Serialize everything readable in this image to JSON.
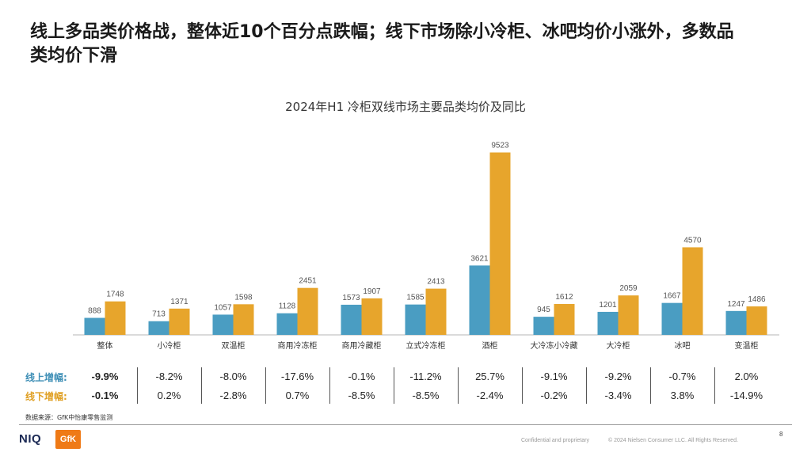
{
  "headline": "线上多品类价格战，整体近10个百分点跌幅；线下市场除小冷柜、冰吧均价小涨外，多数品类均价下滑",
  "colors": {
    "online": "#4a9dc2",
    "offline": "#e7a52c"
  },
  "chart_data": {
    "type": "bar",
    "title": "2024年H1 冷柜双线市场主要品类均价及同比",
    "categories": [
      "整体",
      "小冷柜",
      "双温柜",
      "商用冷冻柜",
      "商用冷藏柜",
      "立式冷冻柜",
      "酒柜",
      "大冷冻小冷藏",
      "大冷柜",
      "冰吧",
      "变温柜"
    ],
    "series": [
      {
        "values": [
          888,
          713,
          1057,
          1128,
          1573,
          1585,
          3621,
          945,
          1201,
          1667,
          1247
        ]
      },
      {
        "values": [
          1748,
          1371,
          1598,
          2451,
          1907,
          2413,
          9523,
          1612,
          2059,
          4570,
          1486
        ]
      }
    ],
    "ylim": [
      0,
      10000
    ],
    "grid": false
  },
  "growth_table": {
    "online_label": "线上增幅:",
    "offline_label": "线下增幅:",
    "online": [
      "-9.9%",
      "-8.2%",
      "-8.0%",
      "-17.6%",
      "-0.1%",
      "-11.2%",
      "25.7%",
      "-9.1%",
      "-9.2%",
      "-0.7%",
      "2.0%"
    ],
    "offline": [
      "-0.1%",
      "0.2%",
      "-2.8%",
      "0.7%",
      "-8.5%",
      "-8.5%",
      "-2.4%",
      "-0.2%",
      "-3.4%",
      "3.8%",
      "-14.9%"
    ]
  },
  "footer": {
    "source": "数据来源：GfK中怡康零售监测",
    "page_number": "8",
    "confidential": "Confidential and proprietary",
    "copyright": "© 2024 Nielsen Consumer LLC. All Rights Reserved.",
    "logo_niq": "NIQ",
    "logo_gfk": "GfK"
  }
}
